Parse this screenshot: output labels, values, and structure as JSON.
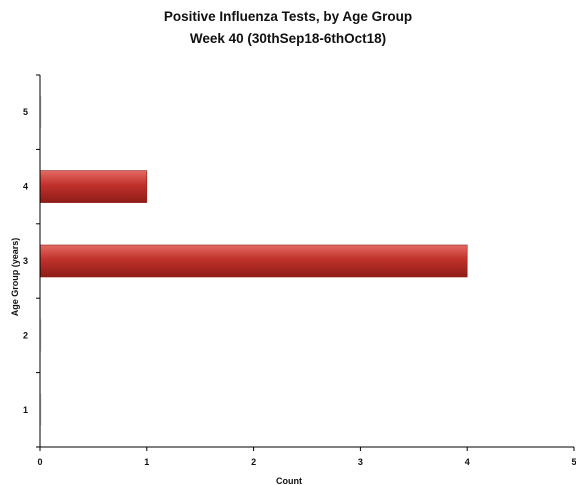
{
  "chart_data": {
    "type": "bar",
    "orientation": "horizontal",
    "title": "Positive Influenza Tests, by Age Group",
    "subtitle": "Week 40  (30thSep18-6thOct18)",
    "xlabel": "Count",
    "ylabel": "Age Group (years)",
    "categories": [
      "1",
      "2",
      "3",
      "4",
      "5"
    ],
    "values": [
      0,
      0,
      4,
      1,
      0
    ],
    "xlim": [
      0,
      5
    ],
    "xticks": [
      "0",
      "1",
      "2",
      "3",
      "4",
      "5"
    ],
    "grid": false,
    "bar_color": "#c0312b",
    "bar_color_light": "#e46b63",
    "bar_color_dark": "#8e1d18"
  }
}
